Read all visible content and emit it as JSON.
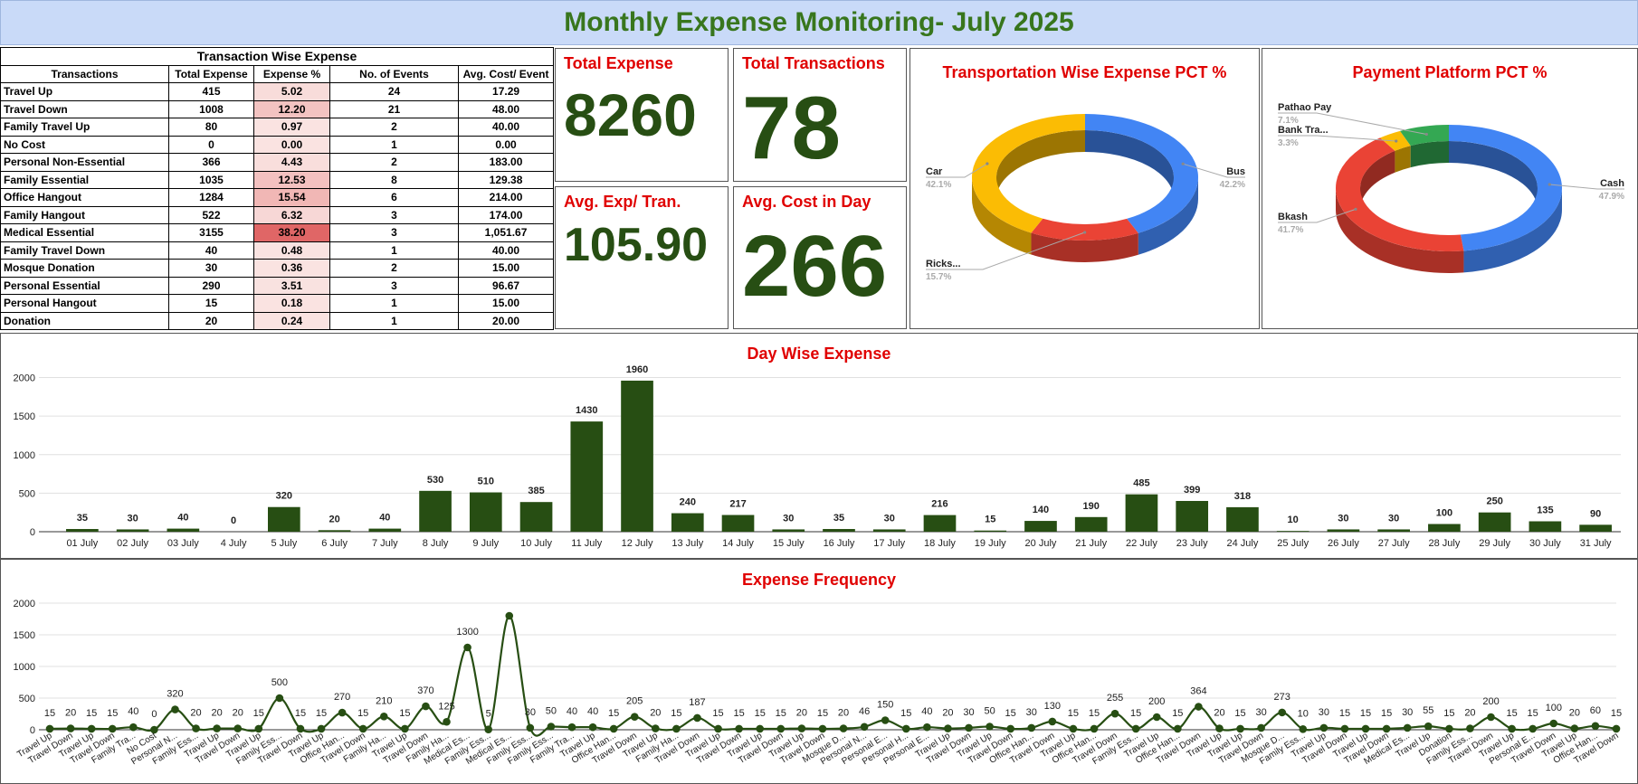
{
  "page_title": "Monthly Expense Monitoring- July 2025",
  "table": {
    "caption": "Transaction Wise Expense",
    "headers": [
      "Transactions",
      "Total Expense",
      "Expense %",
      "No. of Events",
      "Avg. Cost/ Event"
    ],
    "rows": [
      {
        "name": "Travel Up",
        "total": "415",
        "pct": "5.02",
        "events": "24",
        "avg": "17.29"
      },
      {
        "name": "Travel Down",
        "total": "1008",
        "pct": "12.20",
        "events": "21",
        "avg": "48.00"
      },
      {
        "name": "Family Travel Up",
        "total": "80",
        "pct": "0.97",
        "events": "2",
        "avg": "40.00"
      },
      {
        "name": "No Cost",
        "total": "0",
        "pct": "0.00",
        "events": "1",
        "avg": "0.00"
      },
      {
        "name": "Personal Non-Essential",
        "total": "366",
        "pct": "4.43",
        "events": "2",
        "avg": "183.00"
      },
      {
        "name": "Family Essential",
        "total": "1035",
        "pct": "12.53",
        "events": "8",
        "avg": "129.38"
      },
      {
        "name": "Office Hangout",
        "total": "1284",
        "pct": "15.54",
        "events": "6",
        "avg": "214.00"
      },
      {
        "name": "Family Hangout",
        "total": "522",
        "pct": "6.32",
        "events": "3",
        "avg": "174.00"
      },
      {
        "name": "Medical Essential",
        "total": "3155",
        "pct": "38.20",
        "events": "3",
        "avg": "1,051.67"
      },
      {
        "name": "Family Travel Down",
        "total": "40",
        "pct": "0.48",
        "events": "1",
        "avg": "40.00"
      },
      {
        "name": "Mosque Donation",
        "total": "30",
        "pct": "0.36",
        "events": "2",
        "avg": "15.00"
      },
      {
        "name": "Personal Essential",
        "total": "290",
        "pct": "3.51",
        "events": "3",
        "avg": "96.67"
      },
      {
        "name": "Personal Hangout",
        "total": "15",
        "pct": "0.18",
        "events": "1",
        "avg": "15.00"
      },
      {
        "name": "Donation",
        "total": "20",
        "pct": "0.24",
        "events": "1",
        "avg": "20.00"
      }
    ]
  },
  "cards": {
    "total_expense": {
      "label": "Total Expense",
      "value": "8260"
    },
    "total_transactions": {
      "label": "Total Transactions",
      "value": "78"
    },
    "avg_exp": {
      "label": "Avg. Exp/ Tran.",
      "value": "105.90"
    },
    "avg_day": {
      "label": "Avg. Cost in Day",
      "value": "266"
    }
  },
  "colors": {
    "title_bg": "#c9daf8",
    "title_text": "#38761d",
    "accent_red": "#e00000",
    "dark_green": "#274e13",
    "bar": "#274e13",
    "pct_heat": "#e06666",
    "bus": "#4285f4",
    "car": "#fbbc04",
    "rickshaw": "#ea4335",
    "cash": "#4285f4",
    "bkash": "#ea4335",
    "bank": "#fbbc04",
    "pathao": "#34a853"
  },
  "chart_data": [
    {
      "type": "pie",
      "style": "3d-donut",
      "title": "Transportation Wise Expense PCT %",
      "labels": [
        "Bus",
        "Rickshaw",
        "Car"
      ],
      "display_labels": [
        "Bus",
        "Ricks...",
        "Car"
      ],
      "values": [
        42.2,
        15.7,
        42.1
      ],
      "value_labels": [
        "42.2%",
        "15.7%",
        "42.1%"
      ]
    },
    {
      "type": "pie",
      "style": "3d-donut",
      "title": "Payment Platform PCT %",
      "labels": [
        "Cash",
        "Bkash",
        "Bank Transfer",
        "Pathao Pay"
      ],
      "display_labels": [
        "Cash",
        "Bkash",
        "Bank Tra...",
        "Pathao Pay"
      ],
      "values": [
        47.9,
        41.7,
        3.3,
        7.1
      ],
      "value_labels": [
        "47.9%",
        "41.7%",
        "3.3%",
        "7.1%"
      ]
    },
    {
      "type": "bar",
      "title": "Day Wise Expense",
      "categories": [
        "01 July",
        "02 July",
        "03 July",
        "4 July",
        "5 July",
        "6 July",
        "7 July",
        "8 July",
        "9 July",
        "10 July",
        "11 July",
        "12 July",
        "13 July",
        "14 July",
        "15 July",
        "16 July",
        "17 July",
        "18 July",
        "19 July",
        "20 July",
        "21 July",
        "22 July",
        "23 July",
        "24 July",
        "25 July",
        "26 July",
        "27 July",
        "28 July",
        "29 July",
        "30 July",
        "31 July"
      ],
      "values": [
        35,
        30,
        40,
        0,
        320,
        20,
        40,
        530,
        510,
        385,
        1430,
        1960,
        240,
        217,
        30,
        35,
        30,
        216,
        15,
        140,
        190,
        485,
        399,
        318,
        10,
        30,
        30,
        100,
        250,
        135,
        90
      ],
      "yticks": [
        0,
        500,
        1000,
        1500,
        2000
      ],
      "ylim": [
        0,
        2100
      ]
    },
    {
      "type": "line",
      "title": "Expense Frequency",
      "categories": [
        "Travel Up",
        "Travel Down",
        "Travel Up",
        "Travel Down",
        "Family Tra...",
        "No Cost",
        "Personal N...",
        "Family Ess...",
        "Travel Up",
        "Travel Down",
        "Travel Up",
        "Family Ess...",
        "Travel Down",
        "Travel Up",
        "Office Han...",
        "Travel Down",
        "Family Ha...",
        "Travel Up",
        "Travel Down",
        "Family Ha...",
        "Medical Es...",
        "Family Ess...",
        "Medical Es...",
        "Family Ess...",
        "Family Ess...",
        "Family Tra...",
        "Travel Up",
        "Office Han...",
        "Travel Down",
        "Travel Up",
        "Family Ha...",
        "Travel Down",
        "Travel Up",
        "Travel Down",
        "Travel Up",
        "Travel Down",
        "Travel Up",
        "Travel Down",
        "Mosque D...",
        "Personal N...",
        "Personal E...",
        "Personal H...",
        "Personal E...",
        "Travel Up",
        "Travel Down",
        "Travel Up",
        "Travel Down",
        "Office Han...",
        "Travel Down",
        "Travel Up",
        "Office Han...",
        "Travel Down",
        "Family Ess...",
        "Travel Up",
        "Office Han...",
        "Travel Down",
        "Travel Up",
        "Travel Up",
        "Travel Down",
        "Mosque D...",
        "Family Ess...",
        "Travel Up",
        "Travel Down",
        "Travel Up",
        "Travel Down",
        "Medical Es...",
        "Travel Up",
        "Donation",
        "Family Ess...",
        "Travel Down",
        "Travel Up",
        "Personal E...",
        "Travel Down",
        "Travel Up",
        "Office Han...",
        "Travel Down"
      ],
      "values": [
        15,
        20,
        15,
        15,
        40,
        0,
        320,
        20,
        20,
        20,
        15,
        500,
        15,
        15,
        270,
        15,
        210,
        15,
        370,
        125,
        1300,
        5,
        1800,
        30,
        50,
        40,
        40,
        15,
        205,
        20,
        15,
        187,
        15,
        15,
        15,
        15,
        20,
        15,
        20,
        46,
        150,
        15,
        40,
        20,
        30,
        50,
        15,
        30,
        130,
        15,
        15,
        255,
        15,
        200,
        15,
        364,
        20,
        15,
        30,
        273,
        10,
        30,
        15,
        15,
        15,
        30,
        55,
        15,
        20,
        200,
        15,
        15,
        100,
        20,
        60,
        15
      ],
      "data_labels": [
        "15",
        "20",
        "15",
        "15",
        "40",
        "0",
        "320",
        "20",
        "20",
        "20",
        "15",
        "500",
        "15",
        "15",
        "270",
        "15",
        "210",
        "15",
        "370",
        "125",
        "1300",
        "5",
        "",
        "30",
        "50",
        "40",
        "40",
        "15",
        "205",
        "20",
        "15",
        "187",
        "15",
        "15",
        "15",
        "15",
        "20",
        "15",
        "20",
        "46",
        "150",
        "15",
        "40",
        "20",
        "30",
        "50",
        "15",
        "30",
        "130",
        "15",
        "15",
        "255",
        "15",
        "200",
        "15",
        "364",
        "20",
        "15",
        "30",
        "273",
        "10",
        "30",
        "15",
        "15",
        "15",
        "30",
        "55",
        "15",
        "20",
        "200",
        "15",
        "15",
        "100",
        "20",
        "60",
        "15"
      ],
      "yticks": [
        0,
        500,
        1000,
        1500,
        2000
      ],
      "ylim": [
        0,
        2000
      ]
    }
  ]
}
